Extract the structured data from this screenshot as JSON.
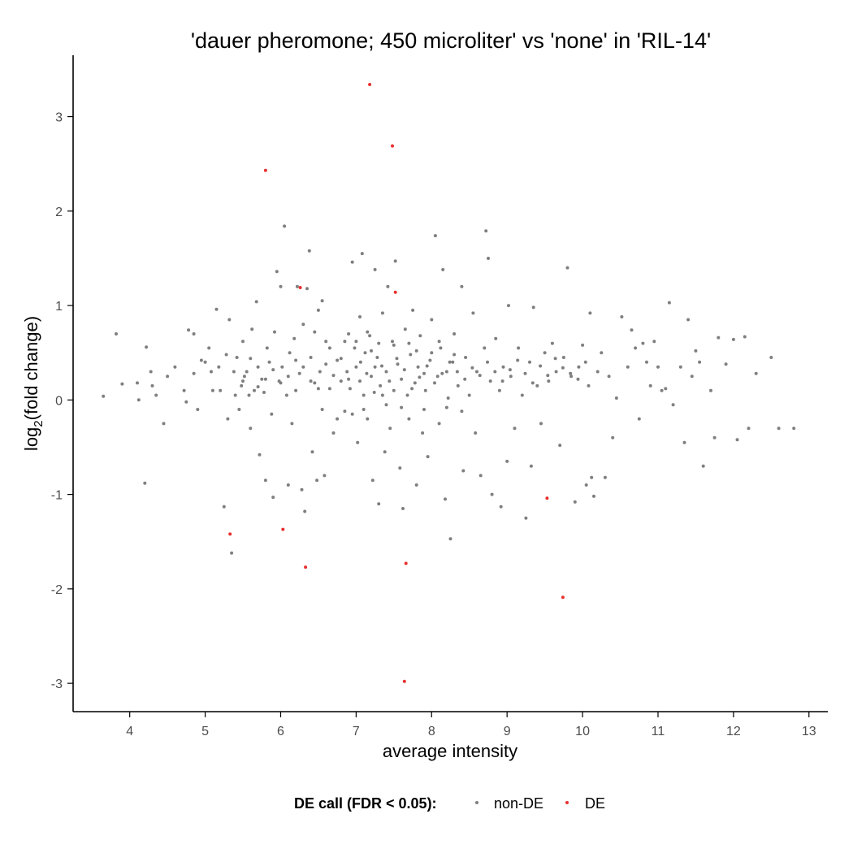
{
  "chart_data": {
    "type": "scatter",
    "title": "'dauer pheromone; 450 microliter' vs 'none' in 'RIL-14'",
    "xlabel": "average intensity",
    "ylabel_main": "log",
    "ylabel_sub": "2",
    "ylabel_rest": "(fold change)",
    "xlim": [
      3.25,
      13.25
    ],
    "ylim": [
      -3.3,
      3.65
    ],
    "x_ticks": [
      4,
      5,
      6,
      7,
      8,
      9,
      10,
      11,
      12,
      13
    ],
    "y_ticks": [
      -3,
      -2,
      -1,
      0,
      1,
      2,
      3
    ],
    "grid": false,
    "legend": {
      "position": "bottom",
      "title": "DE call (FDR < 0.05):",
      "entries": [
        {
          "label": "non-DE",
          "color": "#7f7f7f"
        },
        {
          "label": "DE",
          "color": "#e8302f"
        }
      ]
    },
    "series": [
      {
        "name": "non-DE",
        "color": "#7f7f7f",
        "points": [
          [
            3.65,
            0.04
          ],
          [
            3.82,
            0.7
          ],
          [
            3.9,
            0.17
          ],
          [
            4.1,
            0.18
          ],
          [
            4.12,
            0.0
          ],
          [
            4.2,
            -0.88
          ],
          [
            4.22,
            0.56
          ],
          [
            4.28,
            0.3
          ],
          [
            4.3,
            0.15
          ],
          [
            4.35,
            0.05
          ],
          [
            4.45,
            -0.25
          ],
          [
            4.5,
            0.25
          ],
          [
            4.6,
            0.35
          ],
          [
            4.72,
            0.1
          ],
          [
            4.75,
            -0.02
          ],
          [
            4.78,
            0.74
          ],
          [
            4.85,
            0.7
          ],
          [
            4.85,
            0.28
          ],
          [
            4.9,
            -0.1
          ],
          [
            4.95,
            0.42
          ],
          [
            5.0,
            0.4
          ],
          [
            5.05,
            0.55
          ],
          [
            5.08,
            0.3
          ],
          [
            5.1,
            0.1
          ],
          [
            5.15,
            0.96
          ],
          [
            5.18,
            0.35
          ],
          [
            5.2,
            0.1
          ],
          [
            5.25,
            -1.13
          ],
          [
            5.28,
            0.48
          ],
          [
            5.3,
            -0.2
          ],
          [
            5.32,
            0.85
          ],
          [
            5.35,
            -1.62
          ],
          [
            5.38,
            0.3
          ],
          [
            5.4,
            0.05
          ],
          [
            5.42,
            0.45
          ],
          [
            5.45,
            -0.1
          ],
          [
            5.48,
            0.15
          ],
          [
            5.5,
            0.62
          ],
          [
            5.52,
            0.25
          ],
          [
            5.55,
            0.3
          ],
          [
            5.58,
            0.05
          ],
          [
            5.6,
            -0.3
          ],
          [
            5.62,
            0.75
          ],
          [
            5.65,
            0.1
          ],
          [
            5.68,
            1.04
          ],
          [
            5.7,
            0.35
          ],
          [
            5.72,
            -0.58
          ],
          [
            5.75,
            0.22
          ],
          [
            5.78,
            0.08
          ],
          [
            5.8,
            -0.85
          ],
          [
            5.82,
            0.55
          ],
          [
            5.85,
            0.4
          ],
          [
            5.88,
            -0.15
          ],
          [
            5.9,
            -1.03
          ],
          [
            5.92,
            0.72
          ],
          [
            5.95,
            1.36
          ],
          [
            5.98,
            0.2
          ],
          [
            6.0,
            1.2
          ],
          [
            6.02,
            0.35
          ],
          [
            6.05,
            1.84
          ],
          [
            6.08,
            0.05
          ],
          [
            6.1,
            -0.9
          ],
          [
            6.12,
            0.5
          ],
          [
            6.15,
            -0.25
          ],
          [
            6.18,
            0.65
          ],
          [
            6.2,
            0.1
          ],
          [
            6.22,
            1.2
          ],
          [
            6.25,
            0.28
          ],
          [
            6.28,
            -0.95
          ],
          [
            6.3,
            0.8
          ],
          [
            6.32,
            -1.18
          ],
          [
            6.35,
            1.18
          ],
          [
            6.38,
            1.58
          ],
          [
            6.4,
            0.45
          ],
          [
            6.42,
            -0.55
          ],
          [
            6.45,
            0.18
          ],
          [
            6.48,
            -0.85
          ],
          [
            6.5,
            0.95
          ],
          [
            6.52,
            0.3
          ],
          [
            6.55,
            1.05
          ],
          [
            6.58,
            -0.8
          ],
          [
            6.6,
            0.62
          ],
          [
            6.65,
            0.12
          ],
          [
            6.7,
            -0.35
          ],
          [
            6.75,
            0.42
          ],
          [
            6.8,
            0.2
          ],
          [
            6.85,
            -0.12
          ],
          [
            6.9,
            0.7
          ],
          [
            6.95,
            1.46
          ],
          [
            7.0,
            0.35
          ],
          [
            7.02,
            -0.45
          ],
          [
            7.05,
            0.88
          ],
          [
            7.08,
            1.55
          ],
          [
            7.1,
            0.05
          ],
          [
            7.12,
            0.5
          ],
          [
            7.15,
            -0.2
          ],
          [
            7.18,
            0.68
          ],
          [
            7.2,
            0.25
          ],
          [
            7.22,
            -0.85
          ],
          [
            7.25,
            1.38
          ],
          [
            7.28,
            0.45
          ],
          [
            7.3,
            -1.1
          ],
          [
            7.32,
            0.15
          ],
          [
            7.35,
            0.92
          ],
          [
            7.38,
            -0.55
          ],
          [
            7.4,
            0.3
          ],
          [
            7.42,
            1.2
          ],
          [
            7.45,
            -0.3
          ],
          [
            7.48,
            0.62
          ],
          [
            7.5,
            0.1
          ],
          [
            7.52,
            1.47
          ],
          [
            7.55,
            0.38
          ],
          [
            7.58,
            -0.72
          ],
          [
            7.6,
            0.22
          ],
          [
            7.62,
            -1.15
          ],
          [
            7.65,
            0.75
          ],
          [
            7.68,
            0.05
          ],
          [
            7.7,
            -0.2
          ],
          [
            7.72,
            0.48
          ],
          [
            7.75,
            0.95
          ],
          [
            7.78,
            0.18
          ],
          [
            7.8,
            -0.9
          ],
          [
            7.82,
            0.35
          ],
          [
            7.85,
            0.68
          ],
          [
            7.88,
            -0.35
          ],
          [
            7.9,
            0.28
          ],
          [
            7.92,
            0.1
          ],
          [
            7.95,
            -0.6
          ],
          [
            7.98,
            0.42
          ],
          [
            8.0,
            0.85
          ],
          [
            8.05,
            1.74
          ],
          [
            8.08,
            0.25
          ],
          [
            8.1,
            -0.25
          ],
          [
            8.12,
            0.55
          ],
          [
            8.15,
            1.38
          ],
          [
            8.18,
            -1.05
          ],
          [
            8.2,
            0.3
          ],
          [
            8.22,
            0.02
          ],
          [
            8.25,
            -1.47
          ],
          [
            8.28,
            0.4
          ],
          [
            8.3,
            0.7
          ],
          [
            8.35,
            0.15
          ],
          [
            8.4,
            1.2
          ],
          [
            8.42,
            -0.75
          ],
          [
            8.45,
            0.45
          ],
          [
            8.5,
            0.05
          ],
          [
            8.55,
            0.92
          ],
          [
            8.58,
            -0.35
          ],
          [
            8.6,
            0.3
          ],
          [
            8.65,
            -0.8
          ],
          [
            8.7,
            0.55
          ],
          [
            8.72,
            1.79
          ],
          [
            8.75,
            1.5
          ],
          [
            8.78,
            0.2
          ],
          [
            8.8,
            -1.0
          ],
          [
            8.85,
            0.65
          ],
          [
            8.9,
            0.1
          ],
          [
            8.92,
            -1.13
          ],
          [
            8.95,
            0.35
          ],
          [
            9.0,
            -0.65
          ],
          [
            9.02,
            1.0
          ],
          [
            9.05,
            0.25
          ],
          [
            9.1,
            -0.3
          ],
          [
            9.15,
            0.55
          ],
          [
            9.2,
            0.05
          ],
          [
            9.25,
            -1.25
          ],
          [
            9.3,
            0.4
          ],
          [
            9.32,
            -0.7
          ],
          [
            9.35,
            0.98
          ],
          [
            9.4,
            0.15
          ],
          [
            9.45,
            -0.25
          ],
          [
            9.5,
            0.5
          ],
          [
            9.55,
            0.2
          ],
          [
            9.6,
            0.6
          ],
          [
            9.65,
            0.3
          ],
          [
            9.7,
            -0.48
          ],
          [
            9.75,
            0.45
          ],
          [
            9.8,
            1.4
          ],
          [
            9.85,
            0.25
          ],
          [
            9.9,
            -1.08
          ],
          [
            9.95,
            0.35
          ],
          [
            10.0,
            0.58
          ],
          [
            10.05,
            -0.9
          ],
          [
            10.08,
            0.15
          ],
          [
            10.1,
            0.92
          ],
          [
            10.12,
            -0.82
          ],
          [
            10.15,
            -1.02
          ],
          [
            10.2,
            0.3
          ],
          [
            10.25,
            0.5
          ],
          [
            10.3,
            -0.82
          ],
          [
            10.35,
            0.25
          ],
          [
            10.4,
            -0.4
          ],
          [
            10.45,
            0.02
          ],
          [
            10.52,
            0.88
          ],
          [
            10.6,
            0.35
          ],
          [
            10.65,
            0.74
          ],
          [
            10.7,
            0.55
          ],
          [
            10.75,
            -0.2
          ],
          [
            10.8,
            0.6
          ],
          [
            10.85,
            0.4
          ],
          [
            10.9,
            0.15
          ],
          [
            10.95,
            0.62
          ],
          [
            11.0,
            0.35
          ],
          [
            11.05,
            0.1
          ],
          [
            11.1,
            0.12
          ],
          [
            11.15,
            1.03
          ],
          [
            11.2,
            -0.05
          ],
          [
            11.3,
            0.35
          ],
          [
            11.35,
            -0.45
          ],
          [
            11.4,
            0.85
          ],
          [
            11.45,
            0.25
          ],
          [
            11.5,
            0.52
          ],
          [
            11.55,
            0.4
          ],
          [
            11.6,
            -0.7
          ],
          [
            11.7,
            0.1
          ],
          [
            11.75,
            -0.4
          ],
          [
            11.8,
            0.66
          ],
          [
            11.9,
            0.38
          ],
          [
            12.0,
            0.64
          ],
          [
            12.05,
            -0.42
          ],
          [
            12.15,
            0.67
          ],
          [
            12.2,
            -0.3
          ],
          [
            12.3,
            0.28
          ],
          [
            12.5,
            0.45
          ],
          [
            12.6,
            -0.3
          ],
          [
            12.8,
            -0.3
          ],
          [
            6.88,
            0.3
          ],
          [
            6.92,
            0.12
          ],
          [
            6.98,
            0.55
          ],
          [
            7.06,
            0.4
          ],
          [
            7.14,
            0.28
          ],
          [
            7.24,
            0.08
          ],
          [
            7.34,
            0.36
          ],
          [
            7.44,
            0.2
          ],
          [
            7.54,
            0.44
          ],
          [
            7.64,
            0.32
          ],
          [
            7.74,
            0.12
          ],
          [
            7.84,
            0.24
          ],
          [
            7.94,
            0.36
          ],
          [
            8.04,
            0.18
          ],
          [
            8.14,
            0.28
          ],
          [
            8.24,
            0.4
          ],
          [
            8.34,
            0.3
          ],
          [
            8.44,
            0.22
          ],
          [
            8.54,
            0.34
          ],
          [
            8.64,
            0.26
          ],
          [
            8.74,
            0.4
          ],
          [
            8.84,
            0.3
          ],
          [
            8.94,
            0.2
          ],
          [
            9.04,
            0.32
          ],
          [
            9.14,
            0.42
          ],
          [
            9.24,
            0.28
          ],
          [
            9.34,
            0.18
          ],
          [
            9.44,
            0.36
          ],
          [
            9.54,
            0.26
          ],
          [
            9.64,
            0.44
          ],
          [
            9.74,
            0.34
          ],
          [
            9.84,
            0.28
          ],
          [
            9.94,
            0.22
          ],
          [
            10.04,
            0.4
          ],
          [
            6.3,
            0.35
          ],
          [
            6.4,
            0.2
          ],
          [
            6.5,
            0.12
          ],
          [
            6.6,
            0.38
          ],
          [
            6.7,
            0.26
          ],
          [
            6.8,
            0.44
          ],
          [
            6.9,
            0.22
          ],
          [
            6.2,
            0.42
          ],
          [
            6.1,
            0.25
          ],
          [
            6.0,
            0.18
          ],
          [
            5.9,
            0.32
          ],
          [
            5.8,
            0.22
          ],
          [
            5.7,
            0.14
          ],
          [
            5.6,
            0.44
          ],
          [
            5.5,
            0.2
          ],
          [
            7.0,
            0.62
          ],
          [
            7.1,
            -0.1
          ],
          [
            7.2,
            0.52
          ],
          [
            7.3,
            0.6
          ],
          [
            7.4,
            -0.05
          ],
          [
            7.5,
            0.58
          ],
          [
            7.6,
            -0.08
          ],
          [
            7.7,
            0.6
          ],
          [
            7.8,
            0.52
          ],
          [
            7.9,
            -0.1
          ],
          [
            8.0,
            0.5
          ],
          [
            8.1,
            0.62
          ],
          [
            8.2,
            -0.08
          ],
          [
            8.3,
            0.48
          ],
          [
            8.4,
            -0.12
          ],
          [
            6.45,
            0.72
          ],
          [
            6.55,
            -0.1
          ],
          [
            6.65,
            0.55
          ],
          [
            6.75,
            -0.2
          ],
          [
            6.85,
            0.62
          ],
          [
            6.95,
            -0.15
          ],
          [
            7.05,
            0.2
          ],
          [
            7.15,
            0.72
          ],
          [
            7.25,
            0.35
          ],
          [
            7.35,
            0.05
          ]
        ]
      },
      {
        "name": "DE",
        "color": "#e8302f",
        "points": [
          [
            7.18,
            3.34
          ],
          [
            7.48,
            2.69
          ],
          [
            5.8,
            2.43
          ],
          [
            6.26,
            1.19
          ],
          [
            7.52,
            1.14
          ],
          [
            5.33,
            -1.42
          ],
          [
            6.03,
            -1.37
          ],
          [
            6.33,
            -1.77
          ],
          [
            7.66,
            -1.73
          ],
          [
            9.53,
            -1.04
          ],
          [
            9.74,
            -2.09
          ],
          [
            7.64,
            -2.98
          ]
        ]
      }
    ]
  }
}
